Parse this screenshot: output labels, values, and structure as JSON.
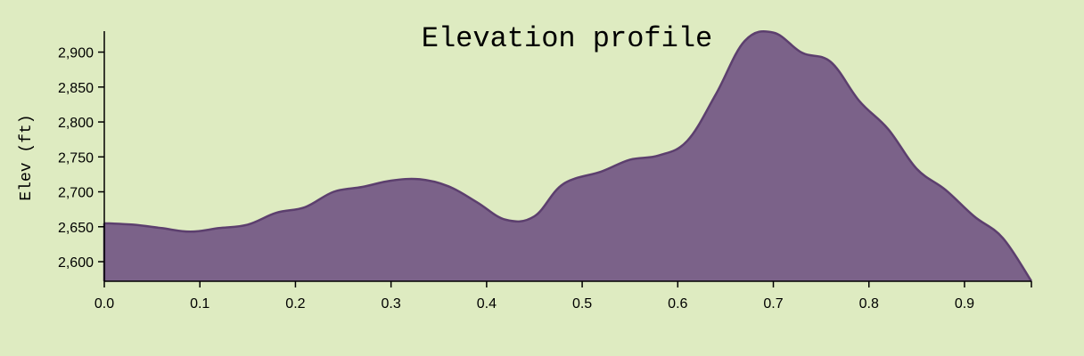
{
  "chart_data": {
    "type": "area",
    "title": "Elevation profile",
    "xlabel": "",
    "ylabel": "Elev (ft)",
    "xlim": [
      0,
      0.97
    ],
    "ylim": [
      2572,
      2930
    ],
    "x_ticks": [
      "0.0",
      "0.1",
      "0.2",
      "0.3",
      "0.4",
      "0.5",
      "0.6",
      "0.7",
      "0.8",
      "0.9"
    ],
    "y_ticks": [
      "2,600",
      "2,650",
      "2,700",
      "2,750",
      "2,800",
      "2,850",
      "2,900"
    ],
    "grid": false,
    "legend": "none",
    "fill_color": "#7b6289",
    "line_color": "#5c3f6e",
    "series": [
      {
        "points": [
          [
            0.0,
            2655
          ],
          [
            0.03,
            2653
          ],
          [
            0.06,
            2648
          ],
          [
            0.09,
            2643
          ],
          [
            0.12,
            2648
          ],
          [
            0.15,
            2653
          ],
          [
            0.18,
            2670
          ],
          [
            0.21,
            2678
          ],
          [
            0.24,
            2700
          ],
          [
            0.27,
            2707
          ],
          [
            0.3,
            2716
          ],
          [
            0.33,
            2718
          ],
          [
            0.36,
            2708
          ],
          [
            0.39,
            2685
          ],
          [
            0.42,
            2660
          ],
          [
            0.45,
            2665
          ],
          [
            0.48,
            2711
          ],
          [
            0.52,
            2729
          ],
          [
            0.55,
            2746
          ],
          [
            0.58,
            2752
          ],
          [
            0.61,
            2773
          ],
          [
            0.64,
            2840
          ],
          [
            0.67,
            2916
          ],
          [
            0.7,
            2928
          ],
          [
            0.73,
            2899
          ],
          [
            0.76,
            2886
          ],
          [
            0.79,
            2830
          ],
          [
            0.82,
            2790
          ],
          [
            0.85,
            2733
          ],
          [
            0.88,
            2703
          ],
          [
            0.91,
            2665
          ],
          [
            0.94,
            2634
          ],
          [
            0.97,
            2572
          ]
        ]
      }
    ]
  }
}
